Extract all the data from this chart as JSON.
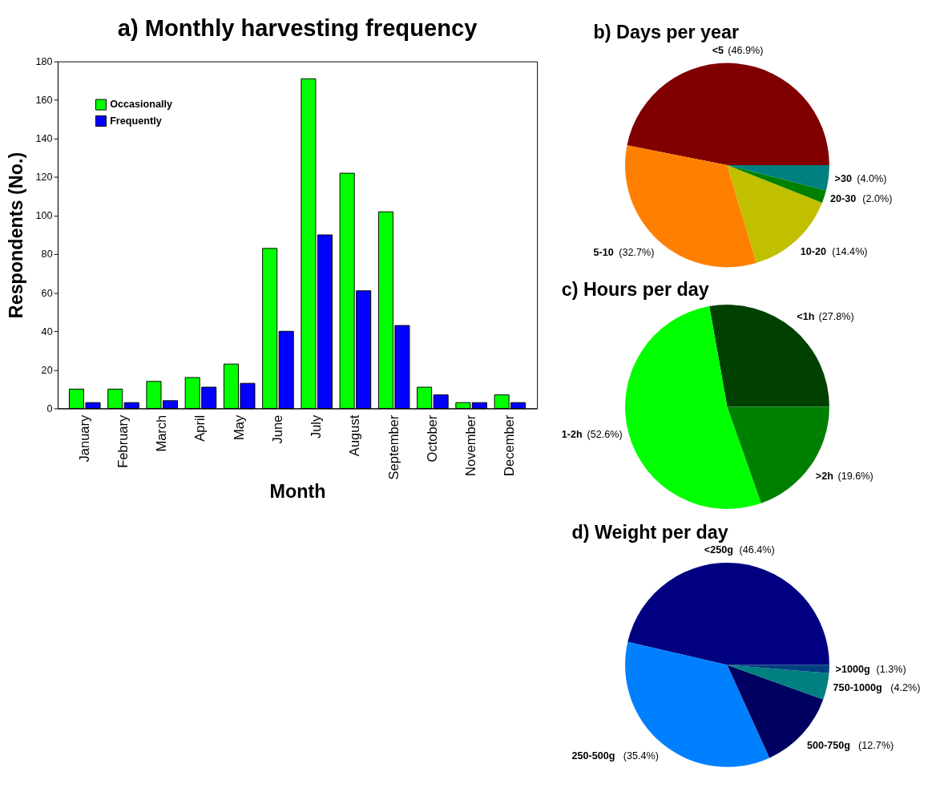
{
  "chart_data": [
    {
      "type": "bar",
      "title": "a) Monthly harvesting frequency",
      "xlabel": "Month",
      "ylabel": "Respondents (No.)",
      "categories": [
        "January",
        "February",
        "March",
        "April",
        "May",
        "June",
        "July",
        "August",
        "September",
        "October",
        "November",
        "December"
      ],
      "series": [
        {
          "name": "Occasionally",
          "color": "#00ff00",
          "values": [
            10,
            10,
            14,
            16,
            23,
            83,
            171,
            122,
            102,
            11,
            3,
            7
          ]
        },
        {
          "name": "Frequently",
          "color": "#0000ff",
          "values": [
            3,
            3,
            4,
            11,
            13,
            40,
            90,
            61,
            43,
            7,
            3,
            3
          ]
        }
      ],
      "ylim": [
        0,
        180
      ],
      "yticks": [
        0,
        20,
        40,
        60,
        80,
        100,
        120,
        140,
        160,
        180
      ],
      "legend": "top left",
      "grid": false
    },
    {
      "type": "pie",
      "title": "b) Days per year",
      "categories": [
        "<5",
        "5-10",
        "10-20",
        "20-30",
        ">30"
      ],
      "values": [
        46.9,
        32.7,
        14.4,
        2.0,
        4.0
      ],
      "value_labels": [
        "(46.9%)",
        "(32.7%)",
        "(14.4%)",
        "(2.0%)",
        "(4.0%)"
      ],
      "colors": [
        "#800000",
        "#ff8000",
        "#c0c000",
        "#008000",
        "#008080"
      ]
    },
    {
      "type": "pie",
      "title": "c) Hours per day",
      "categories": [
        "<1h",
        "1-2h",
        ">2h"
      ],
      "values": [
        27.8,
        52.6,
        19.6
      ],
      "value_labels": [
        "(27.8%)",
        "(52.6%)",
        "(19.6%)"
      ],
      "colors": [
        "#004000",
        "#00ff00",
        "#008000"
      ]
    },
    {
      "type": "pie",
      "title": "d) Weight per day",
      "categories": [
        "<250g",
        "250-500g",
        "500-750g",
        "750-1000g",
        ">1000g"
      ],
      "values": [
        46.4,
        35.4,
        12.7,
        4.2,
        1.3
      ],
      "value_labels": [
        "(46.4%)",
        "(35.4%)",
        "(12.7%)",
        "(4.2%)",
        "(1.3%)"
      ],
      "colors": [
        "#000080",
        "#0080ff",
        "#000060",
        "#008080",
        "#004080"
      ]
    }
  ]
}
